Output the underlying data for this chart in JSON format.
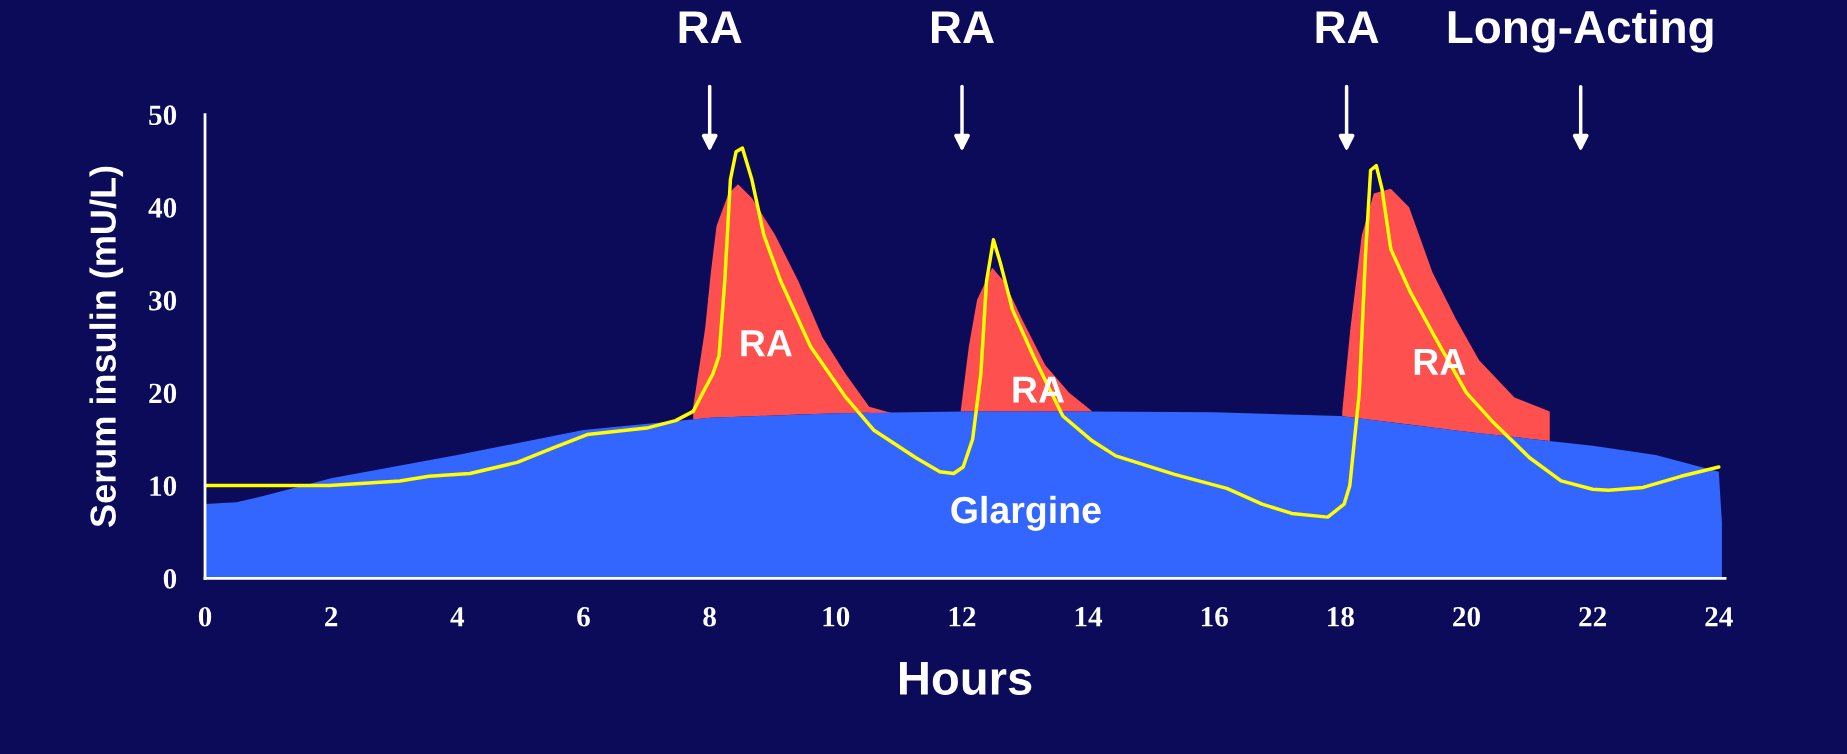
{
  "chart_data": {
    "type": "area",
    "xlabel": "Hours",
    "ylabel": "Serum insulin (mU/L)",
    "xlim": [
      0,
      24.1
    ],
    "ylim": [
      0,
      50
    ],
    "xticks": [
      0,
      2,
      4,
      6,
      8,
      10,
      12,
      14,
      16,
      18,
      20,
      22,
      24
    ],
    "yticks": [
      0,
      10,
      20,
      30,
      40,
      50
    ],
    "grid": false,
    "legend": false,
    "series": [
      {
        "color": "#ff5050",
        "x": [
          7.74,
          7.93,
          8.02,
          8.11,
          8.3,
          8.45,
          8.67,
          9.04,
          9.41,
          9.79,
          10.16,
          10.53,
          10.9
        ],
        "values": [
          18.5,
          27,
          33,
          38,
          41.5,
          42.5,
          41,
          37,
          32,
          26,
          22,
          18.5,
          17.8
        ]
      },
      {
        "color": "#ff5050",
        "x": [
          11.98,
          12.11,
          12.24,
          12.48,
          12.67,
          12.95,
          13.32,
          13.7,
          14.07
        ],
        "values": [
          18,
          25,
          30,
          33.5,
          32,
          28,
          23,
          20,
          18
        ]
      },
      {
        "color": "#ff5050",
        "x": [
          18.03,
          18.16,
          18.34,
          18.53,
          18.8,
          19.09,
          19.46,
          19.83,
          20.2,
          20.76,
          21.32
        ],
        "values": [
          18,
          27,
          37,
          41.5,
          42,
          40,
          33,
          28,
          23.5,
          19.5,
          18
        ]
      },
      {
        "color": "#3366ff",
        "x": [
          0,
          0.5,
          1,
          2,
          4,
          6,
          8,
          10,
          12,
          14,
          16,
          18,
          20,
          22,
          23,
          24,
          24.05
        ],
        "values": [
          8,
          8.2,
          9,
          10.8,
          13.3,
          16,
          17.3,
          17.8,
          18,
          18,
          17.9,
          17.5,
          15.8,
          14.3,
          13.3,
          11.5,
          6
        ]
      },
      {
        "type": "line",
        "color": "#ffff00",
        "line_style": "solid",
        "x": [
          0,
          1.97,
          3.09,
          3.55,
          4.2,
          4.95,
          5.5,
          6.06,
          7.0,
          7.46,
          7.74,
          7.93,
          8.05,
          8.15,
          8.24,
          8.33,
          8.42,
          8.52,
          8.67,
          8.86,
          9.13,
          9.6,
          10.16,
          10.6,
          11.27,
          11.65,
          11.87,
          12.02,
          12.17,
          12.3,
          12.39,
          12.5,
          12.61,
          12.8,
          13.13,
          13.6,
          14.07,
          14.44,
          15.37,
          16.2,
          16.76,
          17.23,
          17.8,
          18.06,
          18.15,
          18.3,
          18.4,
          18.48,
          18.57,
          18.66,
          18.8,
          19.1,
          19.5,
          20,
          20.4,
          21,
          21.5,
          22,
          22.25,
          22.8,
          23.4,
          24
        ],
        "values": [
          10,
          10,
          10.5,
          11,
          11.3,
          12.5,
          14,
          15.5,
          16.2,
          17,
          18,
          20.5,
          22,
          24,
          32,
          43,
          46,
          46.4,
          43,
          37,
          32,
          25,
          19.5,
          16,
          13,
          11.5,
          11.3,
          12,
          15,
          22,
          32,
          36.5,
          34,
          29,
          24,
          17.5,
          14.8,
          13.2,
          11.2,
          9.7,
          8,
          7,
          6.6,
          8,
          10,
          20,
          35,
          44,
          44.5,
          42,
          35.5,
          31,
          26,
          20,
          17,
          13,
          10.5,
          9.6,
          9.5,
          9.8,
          11,
          12
        ]
      }
    ],
    "annotations": [
      "RA",
      "RA",
      "RA",
      "Long-Acting",
      "RA",
      "RA",
      "RA",
      "Glargine"
    ]
  }
}
